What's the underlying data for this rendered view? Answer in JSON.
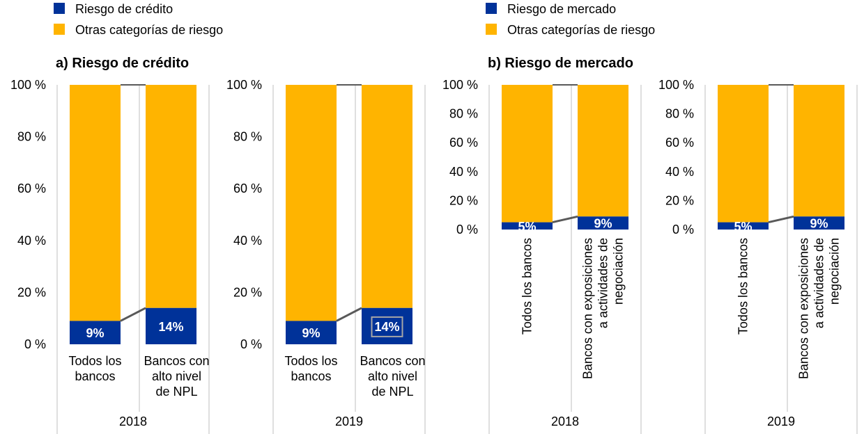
{
  "legends": {
    "a": [
      {
        "label": "Riesgo de crédito",
        "color": "#003299"
      },
      {
        "label": "Otras categorías de riesgo",
        "color": "#FFB400"
      }
    ],
    "b": [
      {
        "label": "Riesgo de mercado",
        "color": "#003299"
      },
      {
        "label": "Otras categorías de riesgo",
        "color": "#FFB400"
      }
    ]
  },
  "panel_titles": {
    "a": "a) Riesgo de crédito",
    "b": "b) Riesgo de mercado"
  },
  "y_tick_labels": [
    "0 %",
    "20 %",
    "40 %",
    "60 %",
    "80 %",
    "100 %"
  ],
  "colors": {
    "primary": "#003299",
    "other": "#FFB400",
    "connector": "#595959",
    "axis": "#BFBFBF"
  },
  "chart_data": [
    {
      "type": "bar",
      "stacked": true,
      "panel": "a",
      "group": "2018",
      "categories": [
        "Todos los bancos",
        "Bancos con alto nivel de NPL"
      ],
      "category_lines": [
        [
          "Todos los",
          "bancos"
        ],
        [
          "Bancos con",
          "alto nivel",
          "de NPL"
        ]
      ],
      "series": [
        {
          "name": "Riesgo de crédito",
          "values": [
            9,
            14
          ]
        },
        {
          "name": "Otras categorías de riesgo",
          "values": [
            91,
            86
          ]
        }
      ],
      "data_labels": [
        "9%",
        "14%"
      ],
      "ylim": [
        0,
        100
      ]
    },
    {
      "type": "bar",
      "stacked": true,
      "panel": "a",
      "group": "2019",
      "categories": [
        "Todos los bancos",
        "Bancos con alto nivel de NPL"
      ],
      "category_lines": [
        [
          "Todos los",
          "bancos"
        ],
        [
          "Bancos con",
          "alto nivel",
          "de NPL"
        ]
      ],
      "series": [
        {
          "name": "Riesgo de crédito",
          "values": [
            9,
            14
          ]
        },
        {
          "name": "Otras categorías de riesgo",
          "values": [
            91,
            86
          ]
        }
      ],
      "data_labels": [
        "9%",
        "14%"
      ],
      "boxed_label": 1,
      "ylim": [
        0,
        100
      ]
    },
    {
      "type": "bar",
      "stacked": true,
      "panel": "b",
      "group": "2018",
      "categories": [
        "Todos los bancos",
        "Bancos con exposiciones a actividades de negociación"
      ],
      "category_lines": [
        [
          "Todos los bancos"
        ],
        [
          "Bancos con exposiciones",
          "a actividades de",
          "negociación"
        ]
      ],
      "series": [
        {
          "name": "Riesgo de mercado",
          "values": [
            5,
            9
          ]
        },
        {
          "name": "Otras categorías de riesgo",
          "values": [
            95,
            91
          ]
        }
      ],
      "data_labels": [
        "5%",
        "9%"
      ],
      "ylim": [
        0,
        100
      ]
    },
    {
      "type": "bar",
      "stacked": true,
      "panel": "b",
      "group": "2019",
      "categories": [
        "Todos los bancos",
        "Bancos con exposiciones a actividades de negociación"
      ],
      "category_lines": [
        [
          "Todos los bancos"
        ],
        [
          "Bancos con exposiciones",
          "a actividades de",
          "negociación"
        ]
      ],
      "series": [
        {
          "name": "Riesgo de mercado",
          "values": [
            5,
            9
          ]
        },
        {
          "name": "Otras categorías de riesgo",
          "values": [
            95,
            91
          ]
        }
      ],
      "data_labels": [
        "5%",
        "9%"
      ],
      "ylim": [
        0,
        100
      ]
    }
  ]
}
